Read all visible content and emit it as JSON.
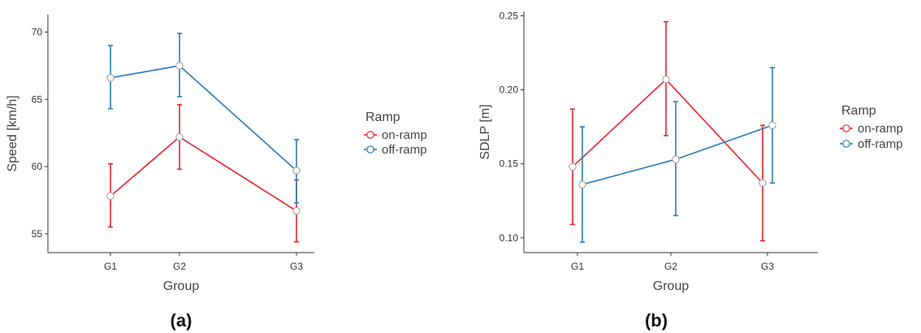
{
  "chart_data": [
    {
      "type": "line",
      "panel_label": "(a)",
      "xlabel": "Group",
      "ylabel": "Speed [km/h]",
      "categories": [
        "G1",
        "G2",
        "G3"
      ],
      "ylim": [
        53.6,
        71.3
      ],
      "yticks": [
        55,
        60,
        65,
        70
      ],
      "ytick_labels": [
        "55",
        "60",
        "65",
        "70"
      ],
      "legend": {
        "title": "Ramp",
        "position": "right"
      },
      "grid": false,
      "series": [
        {
          "name": "on-ramp",
          "color": "#e8242b",
          "values": [
            57.8,
            62.2,
            56.7
          ],
          "lower": [
            55.5,
            59.8,
            54.4
          ],
          "upper": [
            60.2,
            64.6,
            59.0
          ],
          "dodge": 0
        },
        {
          "name": "off-ramp",
          "color": "#2b7bba",
          "values": [
            66.6,
            67.5,
            59.7
          ],
          "lower": [
            64.3,
            65.2,
            57.3
          ],
          "upper": [
            69.0,
            69.9,
            62.0
          ],
          "dodge": 0
        }
      ]
    },
    {
      "type": "line",
      "panel_label": "(b)",
      "xlabel": "Group",
      "ylabel": "SDLP [m]",
      "categories": [
        "G1",
        "G2",
        "G3"
      ],
      "ylim": [
        0.09,
        0.253
      ],
      "yticks": [
        0.1,
        0.15,
        0.2,
        0.25
      ],
      "ytick_labels": [
        "0.10",
        "0.15",
        "0.20",
        "0.25"
      ],
      "legend": {
        "title": "Ramp",
        "position": "right"
      },
      "grid": false,
      "series": [
        {
          "name": "on-ramp",
          "color": "#e8242b",
          "values": [
            0.148,
            0.207,
            0.137
          ],
          "lower": [
            0.109,
            0.169,
            0.098
          ],
          "upper": [
            0.187,
            0.246,
            0.176
          ],
          "dodge": -1
        },
        {
          "name": "off-ramp",
          "color": "#2b7bba",
          "values": [
            0.136,
            0.153,
            0.176
          ],
          "lower": [
            0.097,
            0.115,
            0.137
          ],
          "upper": [
            0.175,
            0.192,
            0.215
          ],
          "dodge": 1
        }
      ]
    }
  ]
}
